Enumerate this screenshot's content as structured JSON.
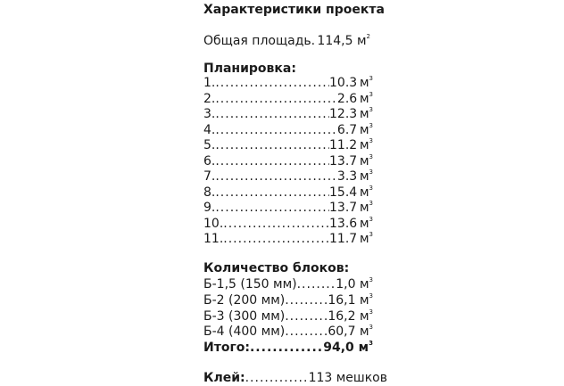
{
  "title": "Характеристики проекта",
  "area": {
    "label": "Общая площадь",
    "value": "114,5",
    "unit": "м",
    "exp": "2"
  },
  "layout": {
    "heading": "Планировка:",
    "unit": "м",
    "exp": "3",
    "rows": [
      {
        "label": "1.",
        "value": "10.3"
      },
      {
        "label": "2.",
        "value": "2.6"
      },
      {
        "label": "3.",
        "value": "12.3"
      },
      {
        "label": "4.",
        "value": "6.7"
      },
      {
        "label": "5.",
        "value": "11.2"
      },
      {
        "label": "6.",
        "value": "13.7"
      },
      {
        "label": "7.",
        "value": "3.3"
      },
      {
        "label": "8.",
        "value": "15.4"
      },
      {
        "label": "9.",
        "value": "13.7"
      },
      {
        "label": "10.",
        "value": "13.6"
      },
      {
        "label": "11.",
        "value": "11.7"
      }
    ]
  },
  "blocks": {
    "heading": "Количество блоков:",
    "unit": "м",
    "exp": "3",
    "rows": [
      {
        "label": "Б-1,5 (150 мм)",
        "value": "1,0"
      },
      {
        "label": "Б-2 (200 мм)",
        "value": "16,1"
      },
      {
        "label": "Б-3 (300 мм)",
        "value": "16,2"
      },
      {
        "label": "Б-4 (400 мм)",
        "value": "60,7"
      }
    ],
    "total": {
      "label": "Итого:",
      "value": "94,0"
    }
  },
  "glue": {
    "label": "Клей:",
    "value": "113 мешков"
  }
}
